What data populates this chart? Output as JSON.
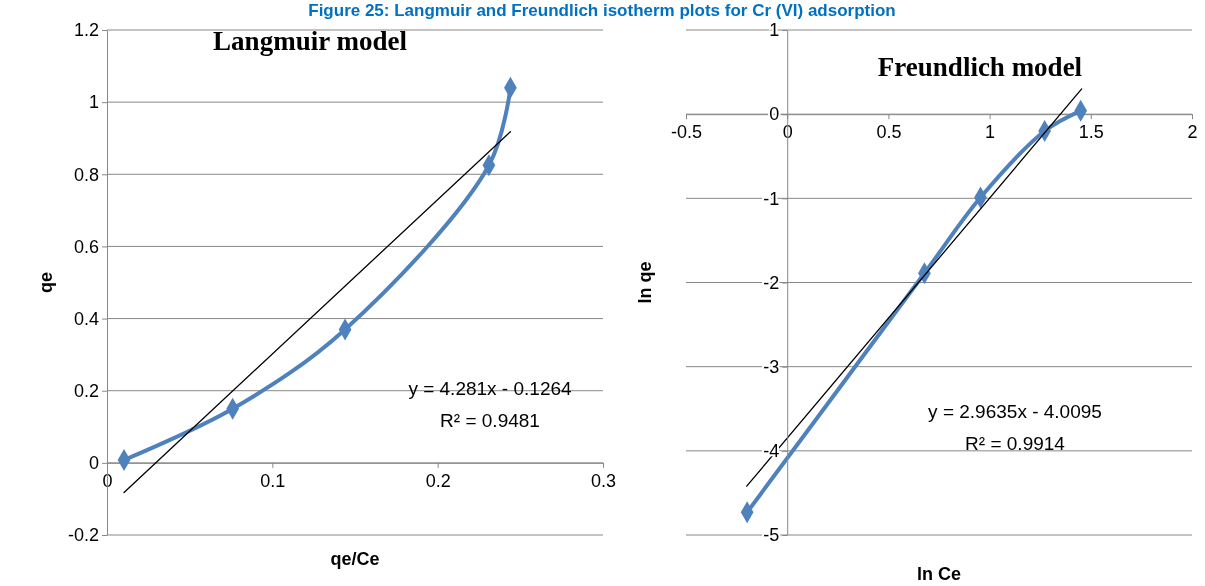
{
  "chart_data": [
    {
      "type": "line",
      "title": "Langmuir model",
      "xlabel": "qe/Ce",
      "ylabel": "qe",
      "xlim": [
        0,
        0.3
      ],
      "ylim": [
        -0.2,
        1.2
      ],
      "xticks": [
        0,
        0.1,
        0.2,
        0.3
      ],
      "yticks": [
        -0.2,
        0,
        0.2,
        0.4,
        0.6,
        0.8,
        1,
        1.2
      ],
      "grid": "y",
      "marker": "diamond",
      "annotations": [
        "Figure 25: Langmuir and Freundlich isotherm plots for Cr (VI) adsorption",
        "y = 4.281x - 0.1264",
        "R² = 0.9481"
      ],
      "series": [
        {
          "color": "#4f81bd",
          "x": [
            0.0103,
            0.076,
            0.144,
            0.231,
            0.244
          ],
          "values": [
            0.008,
            0.15,
            0.37,
            0.825,
            1.04
          ]
        },
        {
          "color": "#000000",
          "marker": "none",
          "x": [
            0.0103,
            0.244
          ],
          "values": [
            -0.082,
            0.918
          ]
        }
      ]
    },
    {
      "type": "line",
      "title": "Freundlich model",
      "xlabel": "ln Ce",
      "ylabel": "ln qe",
      "xlim": [
        -0.5,
        2
      ],
      "ylim": [
        -5,
        1
      ],
      "xticks": [
        -0.5,
        0,
        0.5,
        1,
        1.5,
        2
      ],
      "yticks": [
        -5,
        -4,
        -3,
        -2,
        -1,
        0,
        1
      ],
      "grid": "y",
      "marker": "diamond",
      "annotations": [
        "y = 2.9635x - 4.0095",
        "R² = 0.9914"
      ],
      "series": [
        {
          "color": "#4f81bd",
          "x": [
            -0.198,
            0.678,
            0.955,
            1.272,
            1.45
          ],
          "values": [
            -4.73,
            -1.89,
            -0.99,
            -0.2,
            0.04
          ]
        },
        {
          "color": "#000000",
          "marker": "none",
          "x": [
            -0.2,
            1.455
          ],
          "values": [
            -4.42,
            0.3
          ]
        }
      ]
    }
  ]
}
